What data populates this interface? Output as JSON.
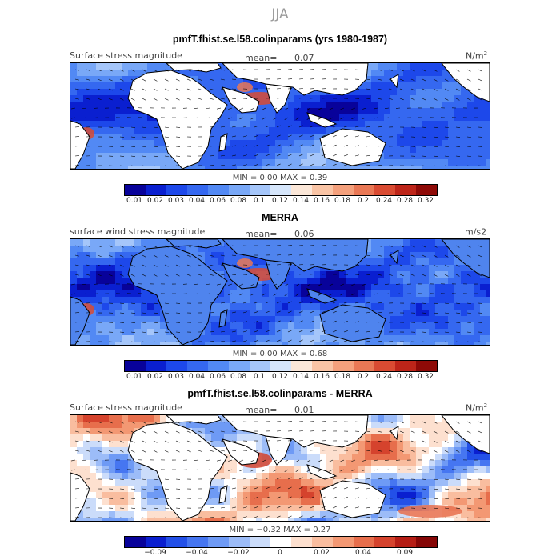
{
  "figure": {
    "season": "JJA"
  },
  "panels": [
    {
      "title": "pmfT.fhist.se.l58.colinparams (yrs 1980-1987)",
      "left_label": "Surface stress magnitude",
      "mean_label": "mean=",
      "mean_value": "0.07",
      "unit": "N/m",
      "unit_sup": "2",
      "min_label": "MIN =",
      "min_value": "0.00",
      "max_label": "MAX =",
      "max_value": "0.39",
      "cbar": "seq",
      "variant": 1
    },
    {
      "title": "MERRA",
      "left_label": "surface wind stress magnitude",
      "mean_label": "mean=",
      "mean_value": "0.06",
      "unit": "m/s2",
      "unit_sup": "",
      "min_label": "MIN =",
      "min_value": "0.00",
      "max_label": "MAX =",
      "max_value": "0.68",
      "cbar": "seq",
      "variant": 2
    },
    {
      "title": "pmfT.fhist.se.l58.colinparams - MERRA",
      "left_label": "Surface stress magnitude",
      "mean_label": "mean=",
      "mean_value": "0.01",
      "unit": "N/m",
      "unit_sup": "2",
      "min_label": "MIN =",
      "min_value": "−0.32",
      "max_label": "MAX =",
      "max_value": "0.27",
      "cbar": "div",
      "variant": 3
    }
  ],
  "colorbars": {
    "seq": {
      "colors": [
        "#08029a",
        "#0a1fd0",
        "#1d48ea",
        "#3568f0",
        "#5289f4",
        "#79a8f7",
        "#a5c6fa",
        "#d6e6fb",
        "#fbe7d8",
        "#f9c4a5",
        "#f4a07c",
        "#e97855",
        "#d94b32",
        "#bd2519",
        "#8e0a07"
      ],
      "labels": [
        "0.01",
        "0.02",
        "0.03",
        "0.04",
        "0.06",
        "0.08",
        "0.1",
        "0.12",
        "0.14",
        "0.16",
        "0.18",
        "0.2",
        "0.24",
        "0.28",
        "0.32"
      ]
    },
    "div": {
      "colors": [
        "#08029a",
        "#0a1fd0",
        "#2350e8",
        "#4676f1",
        "#6e9af5",
        "#9cbcf8",
        "#cbdcfa",
        "#ffffff",
        "#fde0cf",
        "#f9bd9f",
        "#f39873",
        "#e76e4c",
        "#d5432d",
        "#b51d15",
        "#850606"
      ],
      "labels": [
        "−0.09",
        "−0.04",
        "−0.02",
        "0",
        "0.02",
        "0.04",
        "0.09"
      ]
    }
  }
}
